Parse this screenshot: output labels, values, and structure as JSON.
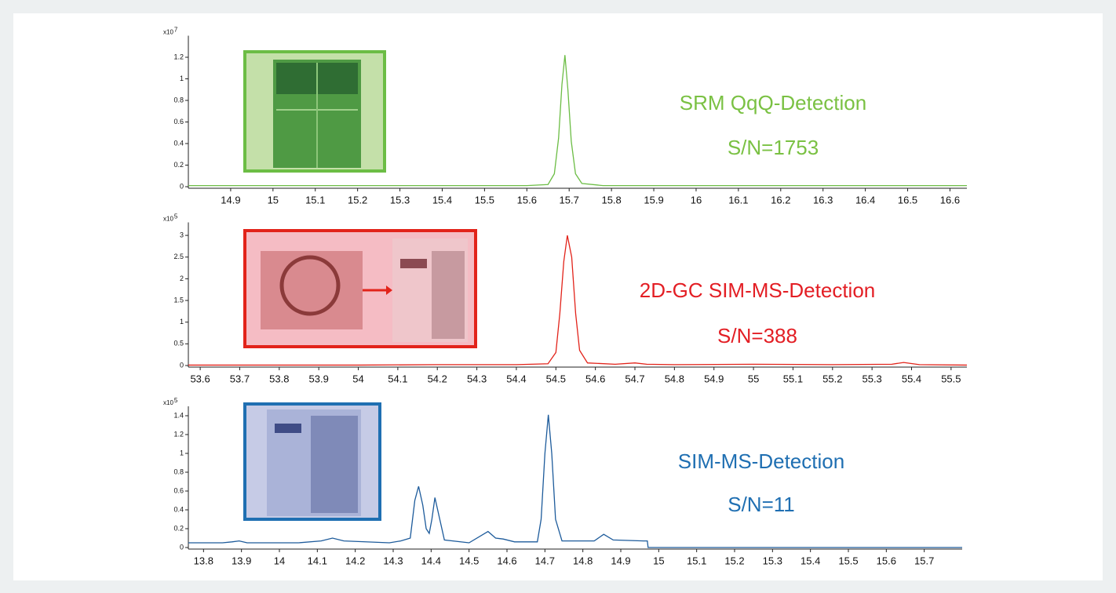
{
  "chart_data": [
    {
      "type": "line",
      "y_multiplier": {
        "base": "x10",
        "exponent": "7"
      },
      "x": [
        14.8,
        15.0,
        15.2,
        15.4,
        15.6,
        15.65,
        15.665,
        15.675,
        15.683,
        15.69,
        15.697,
        15.705,
        15.715,
        15.73,
        15.78,
        16.0,
        16.2,
        16.4,
        16.64
      ],
      "values": [
        0.01,
        0.01,
        0.01,
        0.01,
        0.01,
        0.02,
        0.12,
        0.45,
        0.95,
        1.22,
        0.9,
        0.42,
        0.12,
        0.03,
        0.01,
        0.01,
        0.01,
        0.01,
        0.01
      ],
      "color": "#6cbd45",
      "xlim": [
        14.8,
        16.64
      ],
      "ylim": [
        0,
        1.4
      ],
      "xticks": [
        14.9,
        15,
        15.1,
        15.2,
        15.3,
        15.4,
        15.5,
        15.6,
        15.7,
        15.8,
        15.9,
        16,
        16.1,
        16.2,
        16.3,
        16.4,
        16.5,
        16.6
      ],
      "yticks": [
        0,
        0.2,
        0.4,
        0.6,
        0.8,
        1,
        1.2
      ],
      "annotations": [
        "SRM QqQ-Detection",
        "S/N=1753"
      ],
      "annotation_color": "#7ac143"
    },
    {
      "type": "line",
      "y_multiplier": {
        "base": "x10",
        "exponent": "5"
      },
      "x": [
        53.57,
        53.8,
        54.0,
        54.2,
        54.4,
        54.48,
        54.5,
        54.51,
        54.52,
        54.529,
        54.54,
        54.55,
        54.56,
        54.58,
        54.65,
        54.7,
        54.73,
        54.8,
        55.0,
        55.2,
        55.35,
        55.38,
        55.42,
        55.54
      ],
      "values": [
        0.01,
        0.01,
        0.01,
        0.02,
        0.02,
        0.04,
        0.3,
        1.2,
        2.4,
        3.0,
        2.5,
        1.2,
        0.35,
        0.06,
        0.03,
        0.06,
        0.03,
        0.02,
        0.03,
        0.02,
        0.03,
        0.07,
        0.02,
        0.01
      ],
      "color": "#e2231a",
      "xlim": [
        53.57,
        55.54
      ],
      "ylim": [
        0,
        3.3
      ],
      "xticks": [
        53.6,
        53.7,
        53.8,
        53.9,
        54,
        54.1,
        54.2,
        54.3,
        54.4,
        54.5,
        54.6,
        54.7,
        54.8,
        54.9,
        55,
        55.1,
        55.2,
        55.3,
        55.4,
        55.5
      ],
      "yticks": [
        0,
        0.5,
        1,
        1.5,
        2,
        2.5,
        3
      ],
      "annotations": [
        "2D-GC SIM-MS-Detection",
        "S/N=388"
      ],
      "annotation_color": "#e31e24"
    },
    {
      "type": "line",
      "y_multiplier": {
        "base": "x10",
        "exponent": "5"
      },
      "x": [
        13.76,
        13.85,
        13.875,
        13.894,
        13.915,
        14.05,
        14.11,
        14.14,
        14.17,
        14.29,
        14.32,
        14.345,
        14.357,
        14.367,
        14.378,
        14.387,
        14.395,
        14.402,
        14.41,
        14.42,
        14.435,
        14.5,
        14.55,
        14.57,
        14.59,
        14.62,
        14.68,
        14.69,
        14.7,
        14.709,
        14.718,
        14.728,
        14.745,
        14.83,
        14.855,
        14.88,
        14.96,
        14.97,
        14.972,
        15.8
      ],
      "values": [
        0.05,
        0.05,
        0.06,
        0.07,
        0.05,
        0.05,
        0.07,
        0.1,
        0.07,
        0.05,
        0.07,
        0.1,
        0.5,
        0.65,
        0.45,
        0.2,
        0.15,
        0.3,
        0.53,
        0.35,
        0.08,
        0.05,
        0.17,
        0.1,
        0.09,
        0.06,
        0.06,
        0.3,
        1.0,
        1.41,
        1.0,
        0.3,
        0.07,
        0.07,
        0.14,
        0.08,
        0.07,
        0.07,
        0.0,
        0.0
      ],
      "color": "#1d5b9b",
      "xlim": [
        13.76,
        15.8
      ],
      "ylim": [
        0,
        1.5
      ],
      "xticks": [
        13.8,
        13.9,
        14,
        14.1,
        14.2,
        14.3,
        14.4,
        14.5,
        14.6,
        14.7,
        14.8,
        14.9,
        15,
        15.1,
        15.2,
        15.3,
        15.4,
        15.5,
        15.6,
        15.7
      ],
      "yticks": [
        0,
        0.2,
        0.4,
        0.6,
        0.8,
        1,
        1.2,
        1.4
      ],
      "annotations": [
        "SIM-MS-Detection",
        "S/N=11"
      ],
      "annotation_color": "#1f6fb2"
    }
  ]
}
